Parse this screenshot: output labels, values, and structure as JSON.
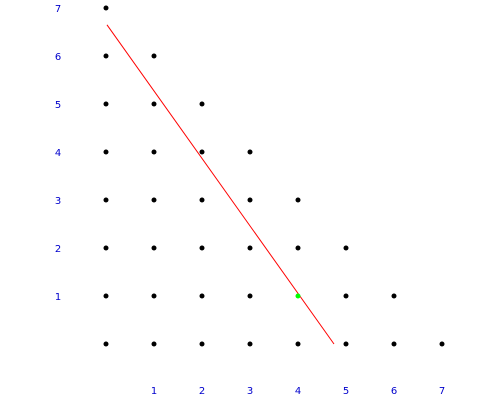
{
  "chart_data": {
    "type": "scatter",
    "title": "",
    "xlabel": "",
    "ylabel": "",
    "xlim": [
      0,
      7
    ],
    "ylim": [
      0,
      7
    ],
    "grid": false,
    "x_tick_labels": [
      "1",
      "2",
      "3",
      "4",
      "5",
      "6",
      "7"
    ],
    "y_tick_labels": [
      "1",
      "2",
      "3",
      "4",
      "5",
      "6",
      "7"
    ],
    "colors": {
      "points": "#000000",
      "highlight": "#00ff00",
      "line": "#ff0000",
      "tick_labels": "#0000cc"
    },
    "series": [
      {
        "values": [
          [
            0,
            0
          ],
          [
            1,
            0
          ],
          [
            2,
            0
          ],
          [
            3,
            0
          ],
          [
            4,
            0
          ],
          [
            5,
            0
          ],
          [
            6,
            0
          ],
          [
            7,
            0
          ],
          [
            0,
            1
          ],
          [
            1,
            1
          ],
          [
            2,
            1
          ],
          [
            3,
            1
          ],
          [
            5,
            1
          ],
          [
            6,
            1
          ],
          [
            0,
            2
          ],
          [
            1,
            2
          ],
          [
            2,
            2
          ],
          [
            3,
            2
          ],
          [
            4,
            2
          ],
          [
            5,
            2
          ],
          [
            0,
            3
          ],
          [
            1,
            3
          ],
          [
            2,
            3
          ],
          [
            3,
            3
          ],
          [
            4,
            3
          ],
          [
            0,
            4
          ],
          [
            1,
            4
          ],
          [
            2,
            4
          ],
          [
            3,
            4
          ],
          [
            0,
            5
          ],
          [
            1,
            5
          ],
          [
            2,
            5
          ],
          [
            0,
            6
          ],
          [
            1,
            6
          ],
          [
            0,
            7
          ]
        ]
      },
      {
        "values": [
          [
            4,
            1
          ]
        ]
      }
    ],
    "line": {
      "from": [
        0.02,
        6.65
      ],
      "to": [
        4.75,
        0
      ]
    }
  }
}
